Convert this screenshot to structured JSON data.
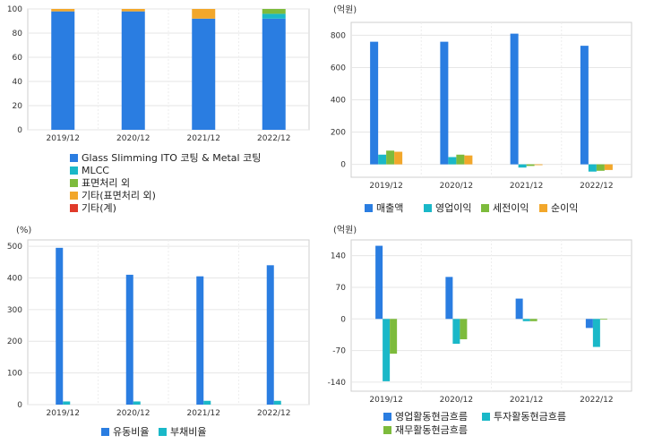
{
  "colors": {
    "blue": "#2a7de1",
    "cyan": "#1ab8c8",
    "green": "#7dbb3c",
    "orange": "#f2a72b",
    "red": "#e03a2a"
  },
  "chart_data": [
    {
      "id": "composition",
      "type": "bar",
      "stacked": true,
      "unit": "",
      "categories": [
        "2019/12",
        "2020/12",
        "2021/12",
        "2022/12"
      ],
      "ylim": [
        0,
        100
      ],
      "yticks": [
        0,
        20,
        40,
        60,
        80,
        100
      ],
      "series": [
        {
          "name": "Glass Slimming ITO 코팅 & Metal 코팅",
          "color": "#2a7de1",
          "values": [
            98,
            98,
            92,
            92
          ]
        },
        {
          "name": "MLCC",
          "color": "#1ab8c8",
          "values": [
            0,
            0,
            0,
            4
          ]
        },
        {
          "name": "표면처리 외",
          "color": "#7dbb3c",
          "values": [
            0,
            0,
            0,
            4
          ]
        },
        {
          "name": "기타(표면처리 외)",
          "color": "#f2a72b",
          "values": [
            2,
            2,
            8,
            0
          ]
        },
        {
          "name": "기타(계)",
          "color": "#e03a2a",
          "values": [
            0,
            0,
            0,
            0
          ]
        }
      ]
    },
    {
      "id": "income",
      "type": "bar",
      "unit": "(억원)",
      "categories": [
        "2019/12",
        "2020/12",
        "2021/12",
        "2022/12"
      ],
      "ylim": [
        -80,
        880
      ],
      "yticks": [
        0,
        200,
        400,
        600,
        800
      ],
      "series": [
        {
          "name": "매출액",
          "color": "#2a7de1",
          "values": [
            760,
            760,
            810,
            735
          ]
        },
        {
          "name": "영업이익",
          "color": "#1ab8c8",
          "values": [
            60,
            45,
            -20,
            -45
          ]
        },
        {
          "name": "세전이익",
          "color": "#7dbb3c",
          "values": [
            85,
            60,
            -10,
            -40
          ]
        },
        {
          "name": "순이익",
          "color": "#f2a72b",
          "values": [
            78,
            55,
            -5,
            -35
          ]
        }
      ]
    },
    {
      "id": "ratios",
      "type": "bar",
      "unit": "(%)",
      "categories": [
        "2019/12",
        "2020/12",
        "2021/12",
        "2022/12"
      ],
      "ylim": [
        0,
        520
      ],
      "yticks": [
        0,
        100,
        200,
        300,
        400,
        500
      ],
      "series": [
        {
          "name": "유동비율",
          "color": "#2a7de1",
          "values": [
            495,
            410,
            405,
            440
          ]
        },
        {
          "name": "부채비율",
          "color": "#1ab8c8",
          "values": [
            10,
            10,
            12,
            12
          ]
        }
      ]
    },
    {
      "id": "cashflow",
      "type": "bar",
      "unit": "(억원)",
      "categories": [
        "2019/12",
        "2020/12",
        "2021/12",
        "2022/12"
      ],
      "ylim": [
        -160,
        175
      ],
      "yticks": [
        -140,
        -70,
        0,
        70,
        140
      ],
      "series": [
        {
          "name": "영업활동현금흐름",
          "color": "#2a7de1",
          "values": [
            162,
            93,
            45,
            -20
          ]
        },
        {
          "name": "투자활동현금흐름",
          "color": "#1ab8c8",
          "values": [
            -138,
            -55,
            -5,
            -62
          ]
        },
        {
          "name": "재무활동현금흐름",
          "color": "#7dbb3c",
          "values": [
            -77,
            -45,
            -5,
            0
          ]
        }
      ]
    }
  ]
}
